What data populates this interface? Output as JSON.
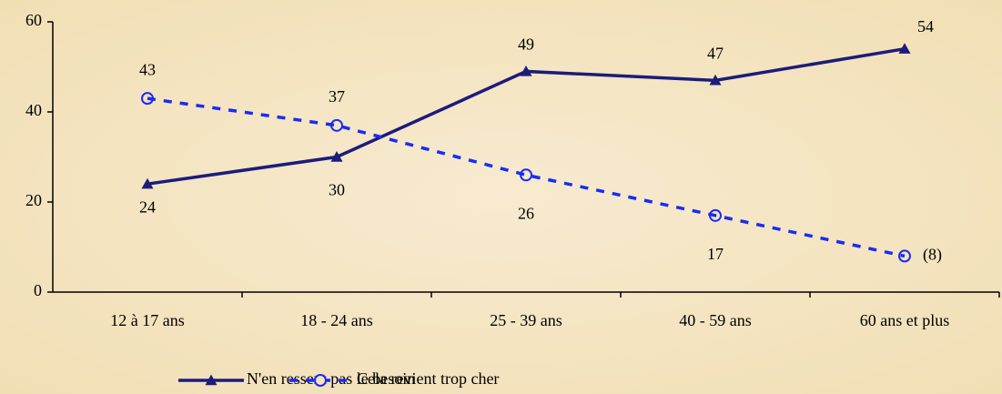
{
  "chart_data": {
    "type": "line",
    "categories": [
      "12 à 17 ans",
      "18 - 24 ans",
      "25 - 39 ans",
      "40 - 59 ans",
      "60 ans et plus"
    ],
    "series": [
      {
        "name": "N'en ressent pas le besoin",
        "color": "#1c1c7a",
        "values": [
          24,
          30,
          49,
          47,
          54
        ]
      },
      {
        "name": "Cela revient trop cher",
        "color": "#1a2cf0",
        "values": [
          43,
          37,
          26,
          17,
          8
        ],
        "value_labels": [
          "43",
          "37",
          "26",
          "17",
          "(8)"
        ]
      }
    ],
    "ylim": [
      0,
      60
    ],
    "yticks": [
      0,
      20,
      40,
      60
    ],
    "legend": "bottom"
  }
}
